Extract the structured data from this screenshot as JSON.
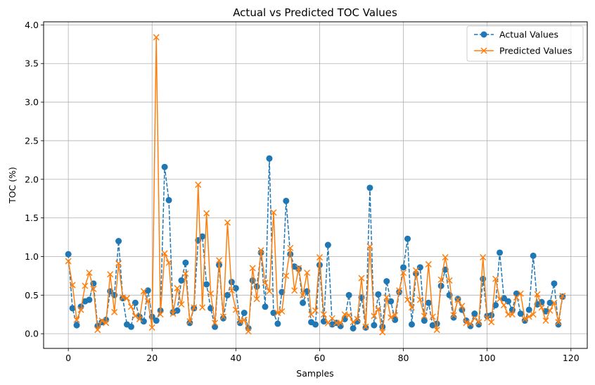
{
  "chart_data": {
    "type": "line",
    "title": "Actual vs Predicted TOC Values",
    "xlabel": "Samples",
    "ylabel": "TOC (%)",
    "xlim": [
      -5.9,
      123.9
    ],
    "ylim": [
      -0.19,
      4.04
    ],
    "xticks": [
      0,
      20,
      40,
      60,
      80,
      100,
      120
    ],
    "yticks": [
      0.0,
      0.5,
      1.0,
      1.5,
      2.0,
      2.5,
      3.0,
      3.5,
      4.0
    ],
    "xtick_labels": [
      "0",
      "20",
      "40",
      "60",
      "80",
      "100",
      "120"
    ],
    "ytick_labels": [
      "0.0",
      "0.5",
      "1.0",
      "1.5",
      "2.0",
      "2.5",
      "3.0",
      "3.5",
      "4.0"
    ],
    "grid": true,
    "legend_position": "top-right",
    "series": [
      {
        "name": "Actual Values",
        "color": "#1f77b4",
        "line_style": "dashed",
        "marker": "circle",
        "values": [
          1.03,
          0.33,
          0.11,
          0.35,
          0.42,
          0.44,
          0.65,
          0.1,
          0.15,
          0.18,
          0.55,
          0.5,
          1.2,
          0.46,
          0.12,
          0.09,
          0.4,
          0.22,
          0.16,
          0.56,
          0.22,
          0.17,
          0.3,
          2.16,
          1.73,
          0.28,
          0.3,
          0.69,
          0.92,
          0.14,
          0.33,
          1.21,
          1.26,
          0.64,
          0.33,
          0.09,
          0.89,
          0.2,
          0.5,
          0.67,
          0.59,
          0.14,
          0.27,
          0.07,
          0.69,
          0.61,
          1.05,
          0.35,
          2.27,
          0.27,
          0.13,
          0.54,
          1.72,
          1.03,
          0.87,
          0.84,
          0.4,
          0.55,
          0.15,
          0.12,
          0.89,
          0.16,
          1.15,
          0.12,
          0.14,
          0.1,
          0.19,
          0.5,
          0.07,
          0.16,
          0.47,
          0.08,
          1.89,
          0.11,
          0.51,
          0.09,
          0.68,
          0.42,
          0.18,
          0.54,
          0.86,
          1.23,
          0.12,
          0.78,
          0.86,
          0.17,
          0.4,
          0.11,
          0.13,
          0.62,
          0.83,
          0.5,
          0.21,
          0.45,
          0.31,
          0.17,
          0.1,
          0.26,
          0.12,
          0.71,
          0.23,
          0.24,
          0.37,
          1.05,
          0.46,
          0.42,
          0.31,
          0.52,
          0.26,
          0.17,
          0.31,
          1.01,
          0.38,
          0.41,
          0.29,
          0.4,
          0.65,
          0.12,
          0.48
        ]
      },
      {
        "name": "Predicted Values",
        "color": "#ff7f0e",
        "line_style": "solid",
        "marker": "x",
        "values": [
          0.94,
          0.63,
          0.18,
          0.31,
          0.62,
          0.79,
          0.58,
          0.05,
          0.17,
          0.14,
          0.77,
          0.28,
          0.91,
          0.47,
          0.46,
          0.35,
          0.23,
          0.19,
          0.55,
          0.42,
          0.08,
          3.84,
          0.25,
          1.04,
          0.92,
          0.26,
          0.59,
          0.38,
          0.78,
          0.16,
          0.34,
          1.93,
          0.34,
          1.56,
          0.52,
          0.14,
          0.95,
          0.22,
          1.44,
          0.56,
          0.31,
          0.16,
          0.18,
          0.03,
          0.85,
          0.45,
          1.08,
          0.66,
          0.55,
          1.57,
          0.27,
          0.29,
          0.75,
          1.11,
          0.56,
          0.85,
          0.5,
          0.79,
          0.25,
          0.3,
          0.99,
          0.25,
          0.14,
          0.2,
          0.14,
          0.14,
          0.25,
          0.24,
          0.15,
          0.19,
          0.72,
          0.09,
          1.13,
          0.23,
          0.32,
          0.02,
          0.47,
          0.21,
          0.24,
          0.56,
          0.79,
          0.44,
          0.34,
          0.82,
          0.44,
          0.23,
          0.9,
          0.22,
          0.05,
          0.7,
          0.99,
          0.69,
          0.24,
          0.44,
          0.36,
          0.14,
          0.13,
          0.2,
          0.15,
          0.99,
          0.2,
          0.15,
          0.71,
          0.45,
          0.37,
          0.25,
          0.25,
          0.47,
          0.52,
          0.19,
          0.22,
          0.25,
          0.51,
          0.34,
          0.17,
          0.3,
          0.4,
          0.15,
          0.49
        ]
      }
    ]
  }
}
